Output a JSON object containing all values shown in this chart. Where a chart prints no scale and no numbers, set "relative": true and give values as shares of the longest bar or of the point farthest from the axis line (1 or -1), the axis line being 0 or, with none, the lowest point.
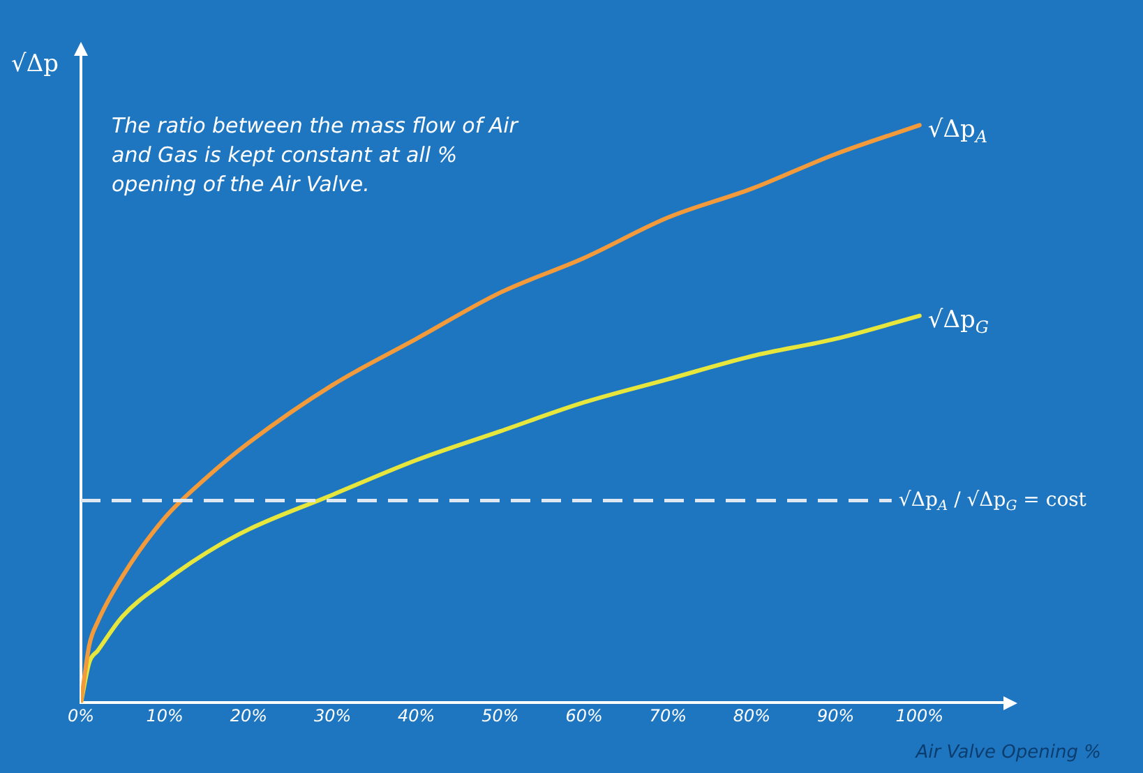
{
  "chart_data": {
    "type": "line",
    "relative": true,
    "xlabel": "Air Valve Opening %",
    "ylabel": "√Δp",
    "x": [
      0,
      1,
      2,
      5,
      10,
      15,
      20,
      30,
      40,
      50,
      60,
      70,
      80,
      90,
      100
    ],
    "xlim": [
      0,
      110
    ],
    "xticks": [
      {
        "value": 0,
        "label": "0%"
      },
      {
        "value": 10,
        "label": "10%"
      },
      {
        "value": 20,
        "label": "20%"
      },
      {
        "value": 30,
        "label": "30%"
      },
      {
        "value": 40,
        "label": "40%"
      },
      {
        "value": 50,
        "label": "50%"
      },
      {
        "value": 60,
        "label": "60%"
      },
      {
        "value": 70,
        "label": "70%"
      },
      {
        "value": 80,
        "label": "80%"
      },
      {
        "value": 90,
        "label": "90%"
      },
      {
        "value": 100,
        "label": "100%"
      }
    ],
    "series": [
      {
        "name": "√Δp$_{A}$",
        "color": "#f39a3a",
        "values": [
          0,
          0.1,
          0.14,
          0.22,
          0.32,
          0.39,
          0.45,
          0.55,
          0.63,
          0.71,
          0.77,
          0.84,
          0.89,
          0.95,
          1
        ]
      },
      {
        "name": "√Δp$_{G}$",
        "color": "#e6e63c",
        "values": [
          0,
          0.07,
          0.09,
          0.15,
          0.21,
          0.26,
          0.3,
          0.36,
          0.42,
          0.47,
          0.52,
          0.56,
          0.6,
          0.63,
          0.67
        ]
      }
    ],
    "ref_lines": [
      {
        "axis": "y",
        "value": 0.35,
        "label": "√Δp$_{A}$ / √Δp$_{G}$ = cost",
        "color": "#dfe7f0",
        "line_style": "dashed"
      }
    ],
    "annotations": [
      "The ratio between the mass flow of Air and Gas is kept constant at all % opening of the Air Valve."
    ],
    "grid": false,
    "legend": false,
    "marker": "none",
    "line_style": "solid"
  }
}
